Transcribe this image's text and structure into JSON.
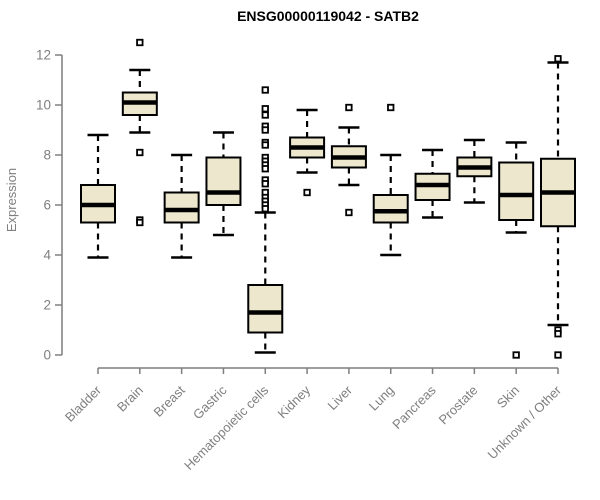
{
  "title": "ENSG00000119042 - SATB2",
  "colors": {
    "box_fill": "#EDE8CD",
    "box_stroke": "#000000",
    "median": "#000000",
    "whisker": "#000000",
    "axis": "#7F7F7F",
    "axis_text": "#7F7F7F",
    "title_text": "#000000",
    "background": "#FFFFFF"
  },
  "chart_data": {
    "type": "boxplot",
    "title": "ENSG00000119042 - SATB2",
    "xlabel": "",
    "ylabel": "Expression",
    "ylim": [
      0,
      12
    ],
    "yticks": [
      0,
      2,
      4,
      6,
      8,
      10,
      12
    ],
    "grid": false,
    "legend": "none",
    "x_tick_rotation_deg": 45,
    "categories": [
      "Bladder",
      "Brain",
      "Breast",
      "Gastric",
      "Hematopoietic cells",
      "Kidney",
      "Liver",
      "Lung",
      "Pancreas",
      "Prostate",
      "Skin",
      "Unknown / Other"
    ],
    "series": [
      {
        "name": "Bladder",
        "whisker_low": 3.9,
        "q1": 5.3,
        "median": 6.0,
        "q3": 6.8,
        "whisker_high": 8.8,
        "outliers": []
      },
      {
        "name": "Brain",
        "whisker_low": 8.9,
        "q1": 9.6,
        "median": 10.1,
        "q3": 10.5,
        "whisker_high": 11.4,
        "outliers": [
          12.5,
          8.1,
          5.4,
          5.3
        ]
      },
      {
        "name": "Breast",
        "whisker_low": 3.9,
        "q1": 5.3,
        "median": 5.8,
        "q3": 6.5,
        "whisker_high": 8.0,
        "outliers": []
      },
      {
        "name": "Gastric",
        "whisker_low": 4.8,
        "q1": 6.0,
        "median": 6.5,
        "q3": 7.9,
        "whisker_high": 8.9,
        "outliers": []
      },
      {
        "name": "Hematopoietic cells",
        "whisker_low": 0.1,
        "q1": 0.9,
        "median": 1.7,
        "q3": 2.8,
        "whisker_high": 5.7,
        "outliers": [
          10.6,
          9.85,
          9.6,
          9.15,
          9.0,
          8.5,
          8.4,
          7.9,
          7.75,
          7.6,
          7.45,
          7.0,
          6.85,
          6.5,
          6.3,
          6.15,
          6.0,
          5.85
        ]
      },
      {
        "name": "Kidney",
        "whisker_low": 7.3,
        "q1": 7.9,
        "median": 8.3,
        "q3": 8.7,
        "whisker_high": 9.8,
        "outliers": [
          6.5
        ]
      },
      {
        "name": "Liver",
        "whisker_low": 6.8,
        "q1": 7.5,
        "median": 7.9,
        "q3": 8.35,
        "whisker_high": 9.1,
        "outliers": [
          9.9,
          5.7
        ]
      },
      {
        "name": "Lung",
        "whisker_low": 4.0,
        "q1": 5.3,
        "median": 5.75,
        "q3": 6.4,
        "whisker_high": 8.0,
        "outliers": [
          9.9
        ]
      },
      {
        "name": "Pancreas",
        "whisker_low": 5.5,
        "q1": 6.2,
        "median": 6.8,
        "q3": 7.25,
        "whisker_high": 8.2,
        "outliers": []
      },
      {
        "name": "Prostate",
        "whisker_low": 6.1,
        "q1": 7.15,
        "median": 7.5,
        "q3": 7.9,
        "whisker_high": 8.6,
        "outliers": []
      },
      {
        "name": "Skin",
        "whisker_low": 4.9,
        "q1": 5.4,
        "median": 6.4,
        "q3": 7.7,
        "whisker_high": 8.5,
        "outliers": [
          0.0
        ]
      },
      {
        "name": "Unknown / Other",
        "whisker_low": 1.2,
        "q1": 5.15,
        "median": 6.5,
        "q3": 7.85,
        "whisker_high": 11.7,
        "outliers": [
          11.85,
          1.0,
          0.85,
          0.0
        ]
      }
    ]
  }
}
